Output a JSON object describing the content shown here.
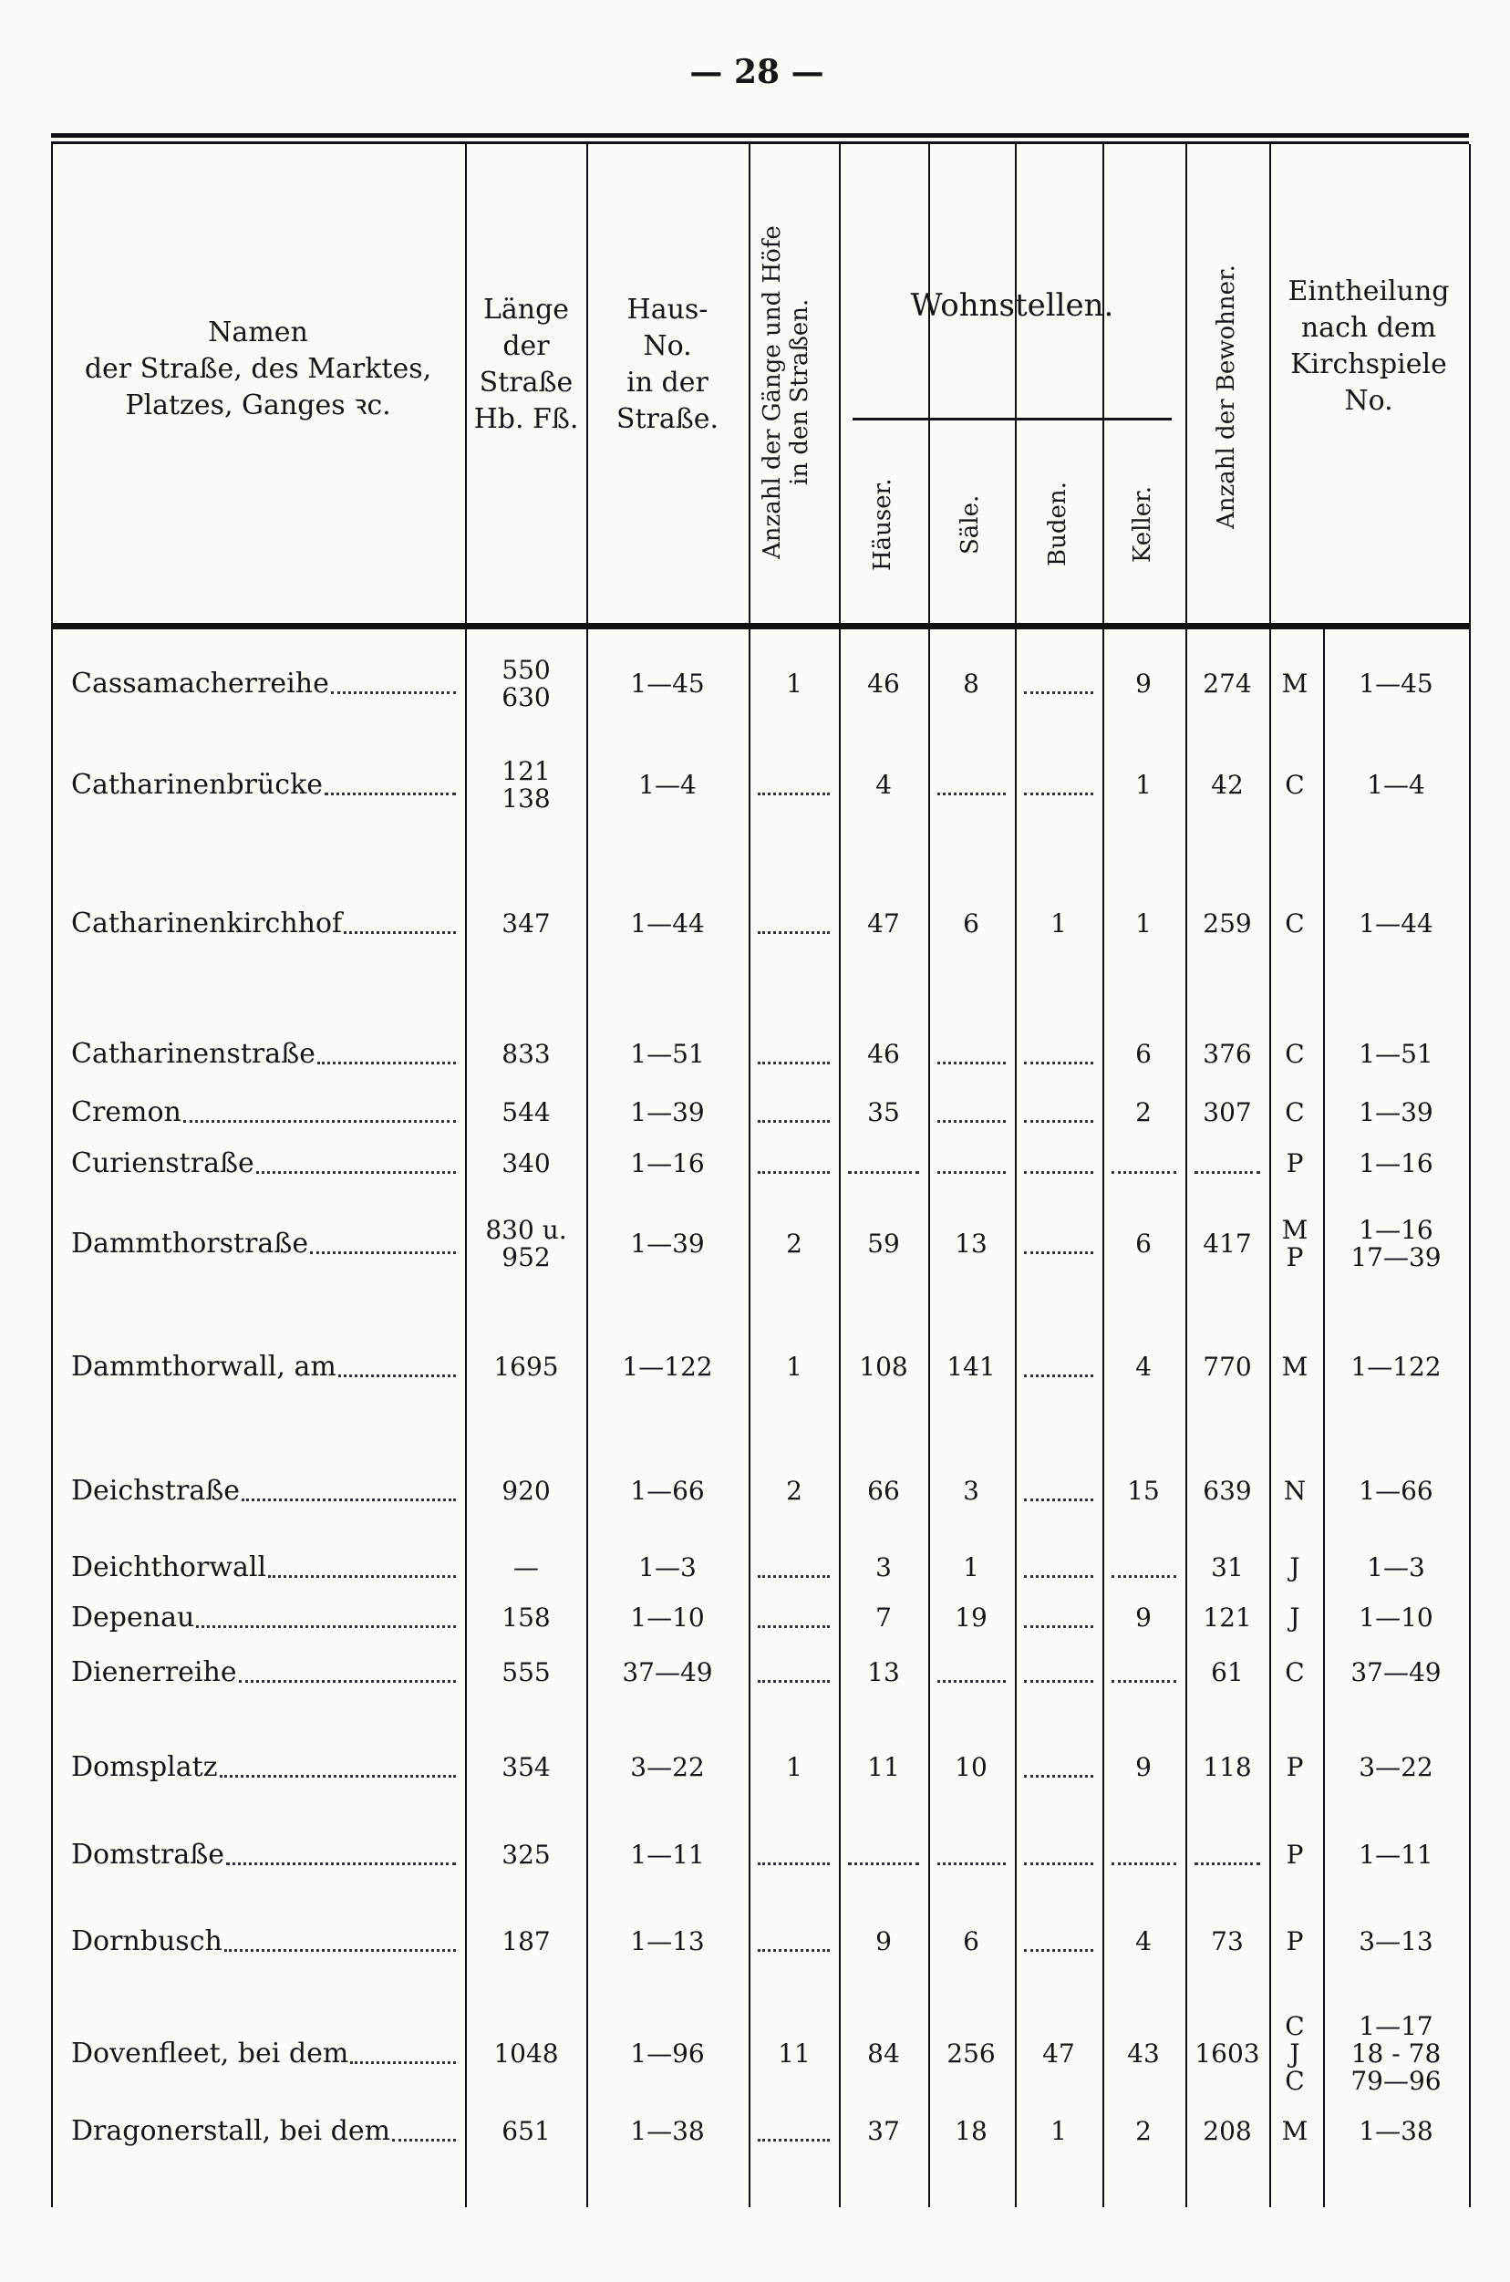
{
  "page_number": "— 28 —",
  "header": {
    "name": [
      "Namen",
      "der Straße, des Marktes,",
      "Platzes, Ganges ꝛc."
    ],
    "length": [
      "Länge",
      "der",
      "Straße",
      "Hb. Fß."
    ],
    "house_no": [
      "Haus-",
      "No.",
      "in der",
      "Straße."
    ],
    "courts": [
      "Anzahl der Gänge und Höfe",
      "in den Straßen."
    ],
    "dwellings": "Wohnstellen.",
    "houses": "Häuser.",
    "halls": "Säle.",
    "booths": "Buden.",
    "cellars": "Keller.",
    "residents": "Anzahl der Bewohner.",
    "parish": [
      "Eintheilung",
      "nach dem",
      "Kirchspiele",
      "No."
    ]
  },
  "rows": [
    {
      "name": "Cassamacherreihe",
      "length": [
        "550",
        "630"
      ],
      "house_no": "1—45",
      "courts": "1",
      "houses": "46",
      "halls": "8",
      "booths": null,
      "cellars": "9",
      "residents": "274",
      "parish": [
        "M"
      ],
      "parish_no": [
        "1—45"
      ]
    },
    {
      "name": "Catharinenbrücke",
      "length": [
        "121",
        "138"
      ],
      "house_no": "1—4",
      "courts": null,
      "houses": "4",
      "halls": null,
      "booths": null,
      "cellars": "1",
      "residents": "42",
      "parish": [
        "C"
      ],
      "parish_no": [
        "1—4"
      ]
    },
    {
      "name": "Catharinenkirchhof",
      "length": [
        "347"
      ],
      "house_no": "1—44",
      "courts": null,
      "houses": "47",
      "halls": "6",
      "booths": "1",
      "cellars": "1",
      "residents": "259",
      "parish": [
        "C"
      ],
      "parish_no": [
        "1—44"
      ]
    },
    {
      "name": "Catharinenstraße",
      "length": [
        "833"
      ],
      "house_no": "1—51",
      "courts": null,
      "houses": "46",
      "halls": null,
      "booths": null,
      "cellars": "6",
      "residents": "376",
      "parish": [
        "C"
      ],
      "parish_no": [
        "1—51"
      ]
    },
    {
      "name": "Cremon",
      "length": [
        "544"
      ],
      "house_no": "1—39",
      "courts": null,
      "houses": "35",
      "halls": null,
      "booths": null,
      "cellars": "2",
      "residents": "307",
      "parish": [
        "C"
      ],
      "parish_no": [
        "1—39"
      ]
    },
    {
      "name": "Curienstraße",
      "length": [
        "340"
      ],
      "house_no": "1—16",
      "courts": null,
      "houses": null,
      "halls": null,
      "booths": null,
      "cellars": null,
      "residents": null,
      "parish": [
        "P"
      ],
      "parish_no": [
        "1—16"
      ]
    },
    {
      "name": "Dammthorstraße",
      "length": [
        "830 u.",
        "952"
      ],
      "house_no": "1—39",
      "courts": "2",
      "houses": "59",
      "halls": "13",
      "booths": null,
      "cellars": "6",
      "residents": "417",
      "parish": [
        "M",
        "P"
      ],
      "parish_no": [
        "1—16",
        "17—39"
      ]
    },
    {
      "name": "Dammthorwall, am",
      "length": [
        "1695"
      ],
      "house_no": "1—122",
      "courts": "1",
      "houses": "108",
      "halls": "141",
      "booths": null,
      "cellars": "4",
      "residents": "770",
      "parish": [
        "M"
      ],
      "parish_no": [
        "1—122"
      ]
    },
    {
      "name": "Deichstraße",
      "length": [
        "920"
      ],
      "house_no": "1—66",
      "courts": "2",
      "houses": "66",
      "halls": "3",
      "booths": null,
      "cellars": "15",
      "residents": "639",
      "parish": [
        "N"
      ],
      "parish_no": [
        "1—66"
      ]
    },
    {
      "name": "Deichthorwall",
      "length": [
        "—"
      ],
      "house_no": "1—3",
      "courts": null,
      "houses": "3",
      "halls": "1",
      "booths": null,
      "cellars": null,
      "residents": "31",
      "parish": [
        "J"
      ],
      "parish_no": [
        "1—3"
      ]
    },
    {
      "name": "Depenau",
      "length": [
        "158"
      ],
      "house_no": "1—10",
      "courts": null,
      "houses": "7",
      "halls": "19",
      "booths": null,
      "cellars": "9",
      "residents": "121",
      "parish": [
        "J"
      ],
      "parish_no": [
        "1—10"
      ]
    },
    {
      "name": "Dienerreihe",
      "length": [
        "555"
      ],
      "house_no": "37—49",
      "courts": null,
      "houses": "13",
      "halls": null,
      "booths": null,
      "cellars": null,
      "residents": "61",
      "parish": [
        "C"
      ],
      "parish_no": [
        "37—49"
      ]
    },
    {
      "name": "Domsplatz",
      "length": [
        "354"
      ],
      "house_no": "3—22",
      "courts": "1",
      "houses": "11",
      "halls": "10",
      "booths": null,
      "cellars": "9",
      "residents": "118",
      "parish": [
        "P"
      ],
      "parish_no": [
        "3—22"
      ]
    },
    {
      "name": "Domstraße",
      "length": [
        "325"
      ],
      "house_no": "1—11",
      "courts": null,
      "houses": null,
      "halls": null,
      "booths": null,
      "cellars": null,
      "residents": null,
      "parish": [
        "P"
      ],
      "parish_no": [
        "1—11"
      ]
    },
    {
      "name": "Dornbusch",
      "length": [
        "187"
      ],
      "house_no": "1—13",
      "courts": null,
      "houses": "9",
      "halls": "6",
      "booths": null,
      "cellars": "4",
      "residents": "73",
      "parish": [
        "P"
      ],
      "parish_no": [
        "3—13"
      ]
    },
    {
      "name": "Dovenfleet, bei dem",
      "length": [
        "1048"
      ],
      "house_no": "1—96",
      "courts": "11",
      "houses": "84",
      "halls": "256",
      "booths": "47",
      "cellars": "43",
      "residents": "1603",
      "parish": [
        "C",
        "J",
        "C"
      ],
      "parish_no": [
        "1—17",
        "18 - 78",
        "79—96"
      ]
    },
    {
      "name": "Dragonerstall, bei dem",
      "length": [
        "651"
      ],
      "house_no": "1—38",
      "courts": null,
      "houses": "37",
      "halls": "18",
      "booths": "1",
      "cellars": "2",
      "residents": "208",
      "parish": [
        "M"
      ],
      "parish_no": [
        "1—38"
      ]
    }
  ]
}
